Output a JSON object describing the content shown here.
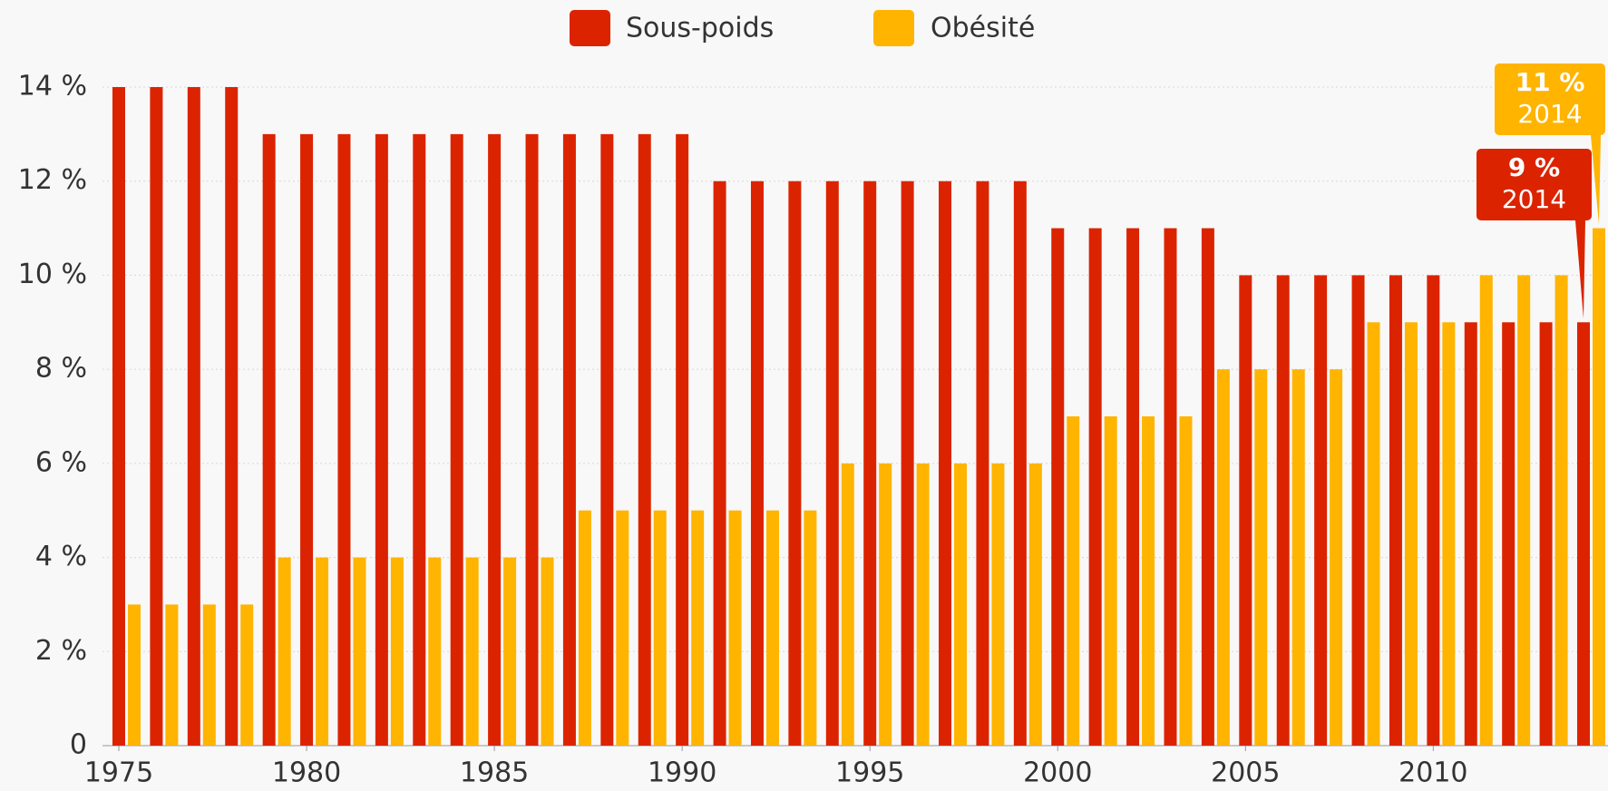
{
  "chart_data": {
    "type": "bar",
    "x": [
      1975,
      1976,
      1977,
      1978,
      1979,
      1980,
      1981,
      1982,
      1983,
      1984,
      1985,
      1986,
      1987,
      1988,
      1989,
      1990,
      1991,
      1992,
      1993,
      1994,
      1995,
      1996,
      1997,
      1998,
      1999,
      2000,
      2001,
      2002,
      2003,
      2004,
      2005,
      2006,
      2007,
      2008,
      2009,
      2010,
      2011,
      2012,
      2013,
      2014
    ],
    "series": [
      {
        "name": "Sous-poids",
        "color": "#dc2300",
        "values": [
          14,
          14,
          14,
          14,
          13,
          13,
          13,
          13,
          13,
          13,
          13,
          13,
          13,
          13,
          13,
          13,
          12,
          12,
          12,
          12,
          12,
          12,
          12,
          12,
          12,
          11,
          11,
          11,
          11,
          11,
          10,
          10,
          10,
          10,
          10,
          10,
          9,
          9,
          9,
          9
        ]
      },
      {
        "name": "Obésité",
        "color": "#ffb400",
        "values": [
          3,
          3,
          3,
          3,
          4,
          4,
          4,
          4,
          4,
          4,
          4,
          4,
          5,
          5,
          5,
          5,
          5,
          5,
          5,
          6,
          6,
          6,
          6,
          6,
          6,
          7,
          7,
          7,
          7,
          8,
          8,
          8,
          8,
          9,
          9,
          9,
          10,
          10,
          10,
          11
        ]
      }
    ],
    "xlim": [
      1975,
      2014
    ],
    "xticks": [
      1975,
      1980,
      1985,
      1990,
      1995,
      2000,
      2005,
      2010
    ],
    "ylim": [
      0,
      14
    ],
    "yticks": [
      0,
      {
        "value": 2,
        "label": "2 %"
      },
      {
        "value": 4,
        "label": "4 %"
      },
      {
        "value": 6,
        "label": "6 %"
      },
      {
        "value": 8,
        "label": "8 %"
      },
      {
        "value": 10,
        "label": "10 %"
      },
      {
        "value": 12,
        "label": "12 %"
      },
      {
        "value": 14,
        "label": "14 %"
      }
    ],
    "grid": true,
    "legend": "top",
    "annotations": [
      {
        "series": 0,
        "index": 39,
        "value_label": "9 %",
        "category_label": "2014"
      },
      {
        "series": 1,
        "index": 39,
        "value_label": "11 %",
        "category_label": "2014"
      }
    ]
  }
}
